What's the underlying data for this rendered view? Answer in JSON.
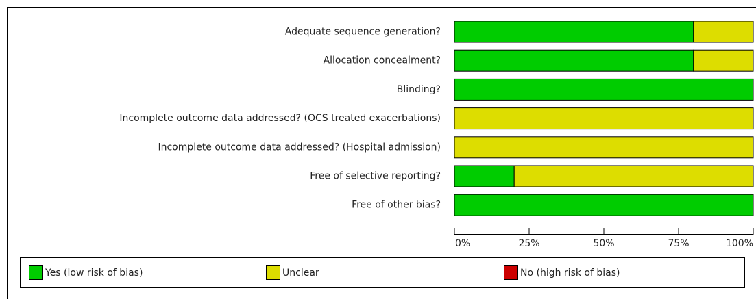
{
  "chart_data": {
    "type": "stacked-barh",
    "categories": [
      "Adequate sequence generation?",
      "Allocation concealment?",
      "Blinding?",
      "Incomplete outcome data addressed? (OCS treated exacerbations)",
      "Incomplete outcome data addressed? (Hospital admission)",
      "Free of selective reporting?",
      "Free of other bias?"
    ],
    "series": [
      {
        "name": "Yes (low risk of bias)",
        "color": "#00cc00",
        "values": [
          80,
          80,
          100,
          0,
          0,
          20,
          100
        ]
      },
      {
        "name": "Unclear",
        "color": "#dddd00",
        "values": [
          20,
          20,
          0,
          100,
          100,
          80,
          0
        ]
      },
      {
        "name": "No (high risk of bias)",
        "color": "#cc0000",
        "values": [
          0,
          0,
          0,
          0,
          0,
          0,
          0
        ]
      }
    ],
    "xlim": [
      0,
      100
    ],
    "xticks": [
      {
        "value": 0,
        "label": "0%"
      },
      {
        "value": 25,
        "label": "25%"
      },
      {
        "value": 50,
        "label": "50%"
      },
      {
        "value": 75,
        "label": "75%"
      },
      {
        "value": 100,
        "label": "100%"
      }
    ]
  }
}
